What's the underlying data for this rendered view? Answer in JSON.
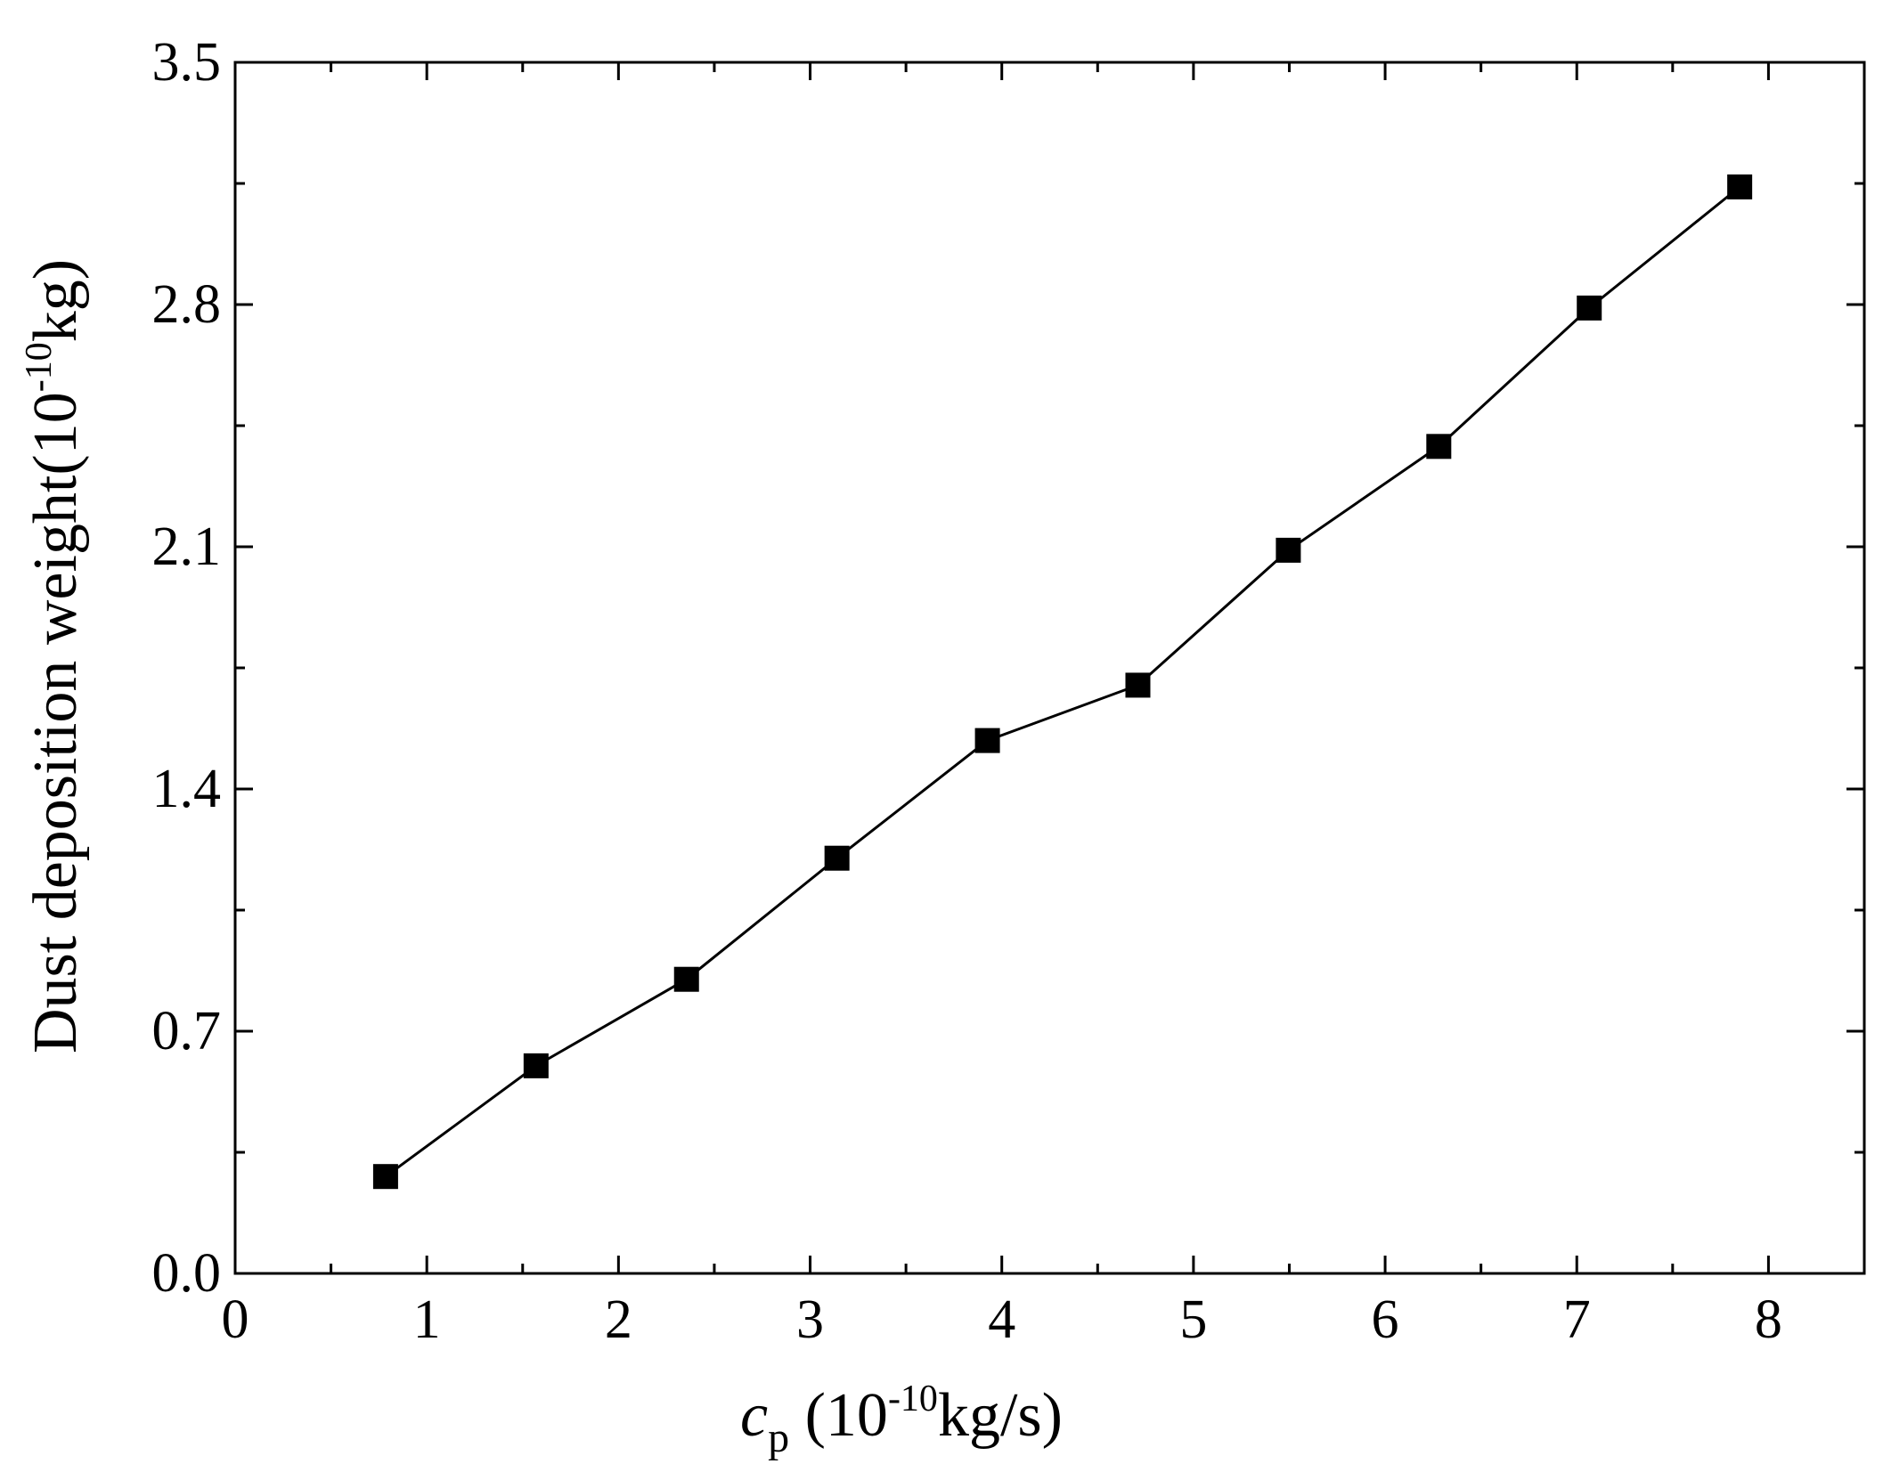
{
  "chart_data": {
    "type": "line",
    "title": "",
    "xlabel": {
      "symbol": "c",
      "subscript": "p",
      "pre": " (10",
      "sup": "-10",
      "post": "kg/s)"
    },
    "ylabel": {
      "pre": "Dust deposition weight(10",
      "sup": "-10",
      "post": "kg)"
    },
    "xlim": [
      0,
      8.5
    ],
    "ylim": [
      0,
      3.5
    ],
    "xticks": [
      0,
      1,
      2,
      3,
      4,
      5,
      6,
      7,
      8
    ],
    "yticks": [
      0.0,
      0.7,
      1.4,
      2.1,
      2.8,
      3.5
    ],
    "ytick_labels": [
      "0.0",
      "0.7",
      "1.4",
      "2.1",
      "2.8",
      "3.5"
    ],
    "xtick_labels": [
      "0",
      "1",
      "2",
      "3",
      "4",
      "5",
      "6",
      "7",
      "8"
    ],
    "grid": false,
    "series": [
      {
        "marker": "square",
        "color": "#000000",
        "x": [
          0.785,
          1.57,
          2.355,
          3.14,
          3.925,
          4.71,
          5.495,
          6.28,
          7.065,
          7.85
        ],
        "y": [
          0.28,
          0.6,
          0.85,
          1.2,
          1.54,
          1.7,
          2.09,
          2.39,
          2.79,
          3.14
        ]
      }
    ]
  }
}
